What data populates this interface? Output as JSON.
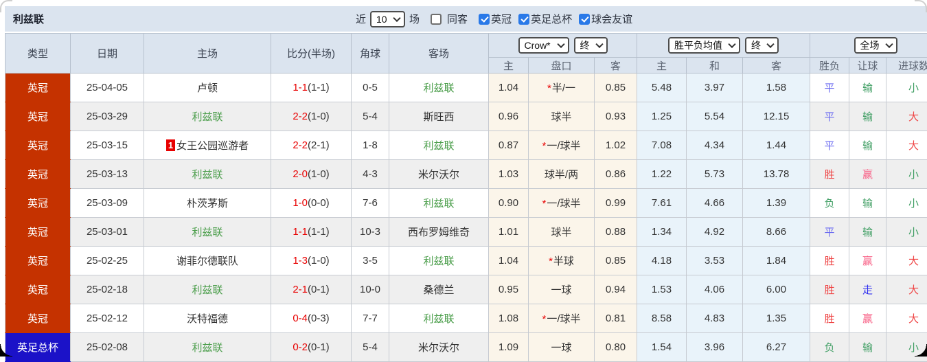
{
  "page": {
    "title": "利兹联"
  },
  "controls": {
    "recent_label": "近",
    "recent_value": "10",
    "matches_label": "场",
    "same_away": {
      "label": "同客",
      "checked": false
    },
    "filters": [
      {
        "label": "英冠",
        "checked": true
      },
      {
        "label": "英足总杯",
        "checked": true
      },
      {
        "label": "球会友谊",
        "checked": true
      }
    ]
  },
  "table": {
    "main_headers": [
      "类型",
      "日期",
      "主场",
      "比分(半场)",
      "角球",
      "客场"
    ],
    "dropdowns": {
      "odds_company": "Crow*",
      "odds_company_time": "终",
      "mean_type": "胜平负均值",
      "mean_time": "终",
      "scope": "全场"
    },
    "sub_headers": [
      "主",
      "盘口",
      "客",
      "主",
      "和",
      "客",
      "胜负",
      "让球",
      "进球数"
    ],
    "rows": [
      {
        "type": "英冠",
        "type_style": "red",
        "date": "25-04-05",
        "home": {
          "name": "卢顿",
          "leeds": false,
          "badge": null
        },
        "score": {
          "ft": "1-1",
          "ht": "(1-1)"
        },
        "corners": "0-5",
        "away": {
          "name": "利兹联",
          "leeds": true
        },
        "odds": {
          "home": "1.04",
          "star": true,
          "handicap": "半/一",
          "away": "0.85"
        },
        "mean": {
          "home": "5.48",
          "draw": "3.97",
          "away": "1.58"
        },
        "result": {
          "text": "平",
          "c": "blue"
        },
        "handicap_result": {
          "text": "输",
          "c": "green"
        },
        "goals": {
          "text": "小",
          "c": "green"
        }
      },
      {
        "type": "英冠",
        "type_style": "red",
        "date": "25-03-29",
        "home": {
          "name": "利兹联",
          "leeds": true,
          "badge": null
        },
        "score": {
          "ft": "2-2",
          "ht": "(1-0)"
        },
        "corners": "5-4",
        "away": {
          "name": "斯旺西",
          "leeds": false
        },
        "odds": {
          "home": "0.96",
          "star": false,
          "handicap": "球半",
          "away": "0.93"
        },
        "mean": {
          "home": "1.25",
          "draw": "5.54",
          "away": "12.15"
        },
        "result": {
          "text": "平",
          "c": "blue"
        },
        "handicap_result": {
          "text": "输",
          "c": "green"
        },
        "goals": {
          "text": "大",
          "c": "red"
        }
      },
      {
        "type": "英冠",
        "type_style": "red",
        "date": "25-03-15",
        "home": {
          "name": "女王公园巡游者",
          "leeds": false,
          "badge": "1"
        },
        "score": {
          "ft": "2-2",
          "ht": "(2-1)"
        },
        "corners": "1-8",
        "away": {
          "name": "利兹联",
          "leeds": true
        },
        "odds": {
          "home": "0.87",
          "star": true,
          "handicap": "一/球半",
          "away": "1.02"
        },
        "mean": {
          "home": "7.08",
          "draw": "4.34",
          "away": "1.44"
        },
        "result": {
          "text": "平",
          "c": "blue"
        },
        "handicap_result": {
          "text": "输",
          "c": "green"
        },
        "goals": {
          "text": "大",
          "c": "red"
        }
      },
      {
        "type": "英冠",
        "type_style": "red",
        "date": "25-03-13",
        "home": {
          "name": "利兹联",
          "leeds": true,
          "badge": null
        },
        "score": {
          "ft": "2-0",
          "ht": "(1-0)"
        },
        "corners": "4-3",
        "away": {
          "name": "米尔沃尔",
          "leeds": false
        },
        "odds": {
          "home": "1.03",
          "star": false,
          "handicap": "球半/两",
          "away": "0.86"
        },
        "mean": {
          "home": "1.22",
          "draw": "5.73",
          "away": "13.78"
        },
        "result": {
          "text": "胜",
          "c": "red"
        },
        "handicap_result": {
          "text": "赢",
          "c": "pink"
        },
        "goals": {
          "text": "小",
          "c": "green"
        }
      },
      {
        "type": "英冠",
        "type_style": "red",
        "date": "25-03-09",
        "home": {
          "name": "朴茨茅斯",
          "leeds": false,
          "badge": null
        },
        "score": {
          "ft": "1-0",
          "ht": "(0-0)"
        },
        "corners": "7-6",
        "away": {
          "name": "利兹联",
          "leeds": true
        },
        "odds": {
          "home": "0.90",
          "star": true,
          "handicap": "一/球半",
          "away": "0.99"
        },
        "mean": {
          "home": "7.61",
          "draw": "4.66",
          "away": "1.39"
        },
        "result": {
          "text": "负",
          "c": "green"
        },
        "handicap_result": {
          "text": "输",
          "c": "green"
        },
        "goals": {
          "text": "小",
          "c": "green"
        }
      },
      {
        "type": "英冠",
        "type_style": "red",
        "date": "25-03-01",
        "home": {
          "name": "利兹联",
          "leeds": true,
          "badge": null
        },
        "score": {
          "ft": "1-1",
          "ht": "(1-1)"
        },
        "corners": "10-3",
        "away": {
          "name": "西布罗姆维奇",
          "leeds": false
        },
        "odds": {
          "home": "1.01",
          "star": false,
          "handicap": "球半",
          "away": "0.88"
        },
        "mean": {
          "home": "1.34",
          "draw": "4.92",
          "away": "8.66"
        },
        "result": {
          "text": "平",
          "c": "blue"
        },
        "handicap_result": {
          "text": "输",
          "c": "green"
        },
        "goals": {
          "text": "小",
          "c": "green"
        }
      },
      {
        "type": "英冠",
        "type_style": "red",
        "date": "25-02-25",
        "home": {
          "name": "谢菲尔德联队",
          "leeds": false,
          "badge": null
        },
        "score": {
          "ft": "1-3",
          "ht": "(1-0)"
        },
        "corners": "3-5",
        "away": {
          "name": "利兹联",
          "leeds": true
        },
        "odds": {
          "home": "1.04",
          "star": true,
          "handicap": "半球",
          "away": "0.85"
        },
        "mean": {
          "home": "4.18",
          "draw": "3.53",
          "away": "1.84"
        },
        "result": {
          "text": "胜",
          "c": "red"
        },
        "handicap_result": {
          "text": "赢",
          "c": "pink"
        },
        "goals": {
          "text": "大",
          "c": "red"
        }
      },
      {
        "type": "英冠",
        "type_style": "red",
        "date": "25-02-18",
        "home": {
          "name": "利兹联",
          "leeds": true,
          "badge": null
        },
        "score": {
          "ft": "2-1",
          "ht": "(0-1)"
        },
        "corners": "10-0",
        "away": {
          "name": "桑德兰",
          "leeds": false
        },
        "odds": {
          "home": "0.95",
          "star": false,
          "handicap": "一球",
          "away": "0.94"
        },
        "mean": {
          "home": "1.53",
          "draw": "4.06",
          "away": "6.00"
        },
        "result": {
          "text": "胜",
          "c": "red"
        },
        "handicap_result": {
          "text": "走",
          "c": "blue2"
        },
        "goals": {
          "text": "大",
          "c": "red"
        }
      },
      {
        "type": "英冠",
        "type_style": "red",
        "date": "25-02-12",
        "home": {
          "name": "沃特福德",
          "leeds": false,
          "badge": null
        },
        "score": {
          "ft": "0-4",
          "ht": "(0-3)"
        },
        "corners": "7-7",
        "away": {
          "name": "利兹联",
          "leeds": true
        },
        "odds": {
          "home": "1.08",
          "star": true,
          "handicap": "一/球半",
          "away": "0.81"
        },
        "mean": {
          "home": "8.58",
          "draw": "4.83",
          "away": "1.35"
        },
        "result": {
          "text": "胜",
          "c": "red"
        },
        "handicap_result": {
          "text": "赢",
          "c": "pink"
        },
        "goals": {
          "text": "大",
          "c": "red"
        }
      },
      {
        "type": "英足总杯",
        "type_style": "blue",
        "date": "25-02-08",
        "home": {
          "name": "利兹联",
          "leeds": true,
          "badge": null
        },
        "score": {
          "ft": "0-2",
          "ht": "(0-1)"
        },
        "corners": "5-4",
        "away": {
          "name": "米尔沃尔",
          "leeds": false
        },
        "odds": {
          "home": "1.09",
          "star": false,
          "handicap": "一球",
          "away": "0.80"
        },
        "mean": {
          "home": "1.54",
          "draw": "3.96",
          "away": "6.27"
        },
        "result": {
          "text": "负",
          "c": "green"
        },
        "handicap_result": {
          "text": "输",
          "c": "green"
        },
        "goals": {
          "text": "小",
          "c": "green"
        }
      }
    ]
  },
  "colors": {
    "header_bg": "#dbe4ef",
    "row_alt_bg": "#efefef",
    "odds_col_bg": "#fbf5ea",
    "mean_col_bg": "#e9f3fa",
    "league_type_red": "#c53200",
    "cup_type_blue": "#1b12c8",
    "leeds_green": "#4b9e4b",
    "score_red": "#e80000"
  }
}
